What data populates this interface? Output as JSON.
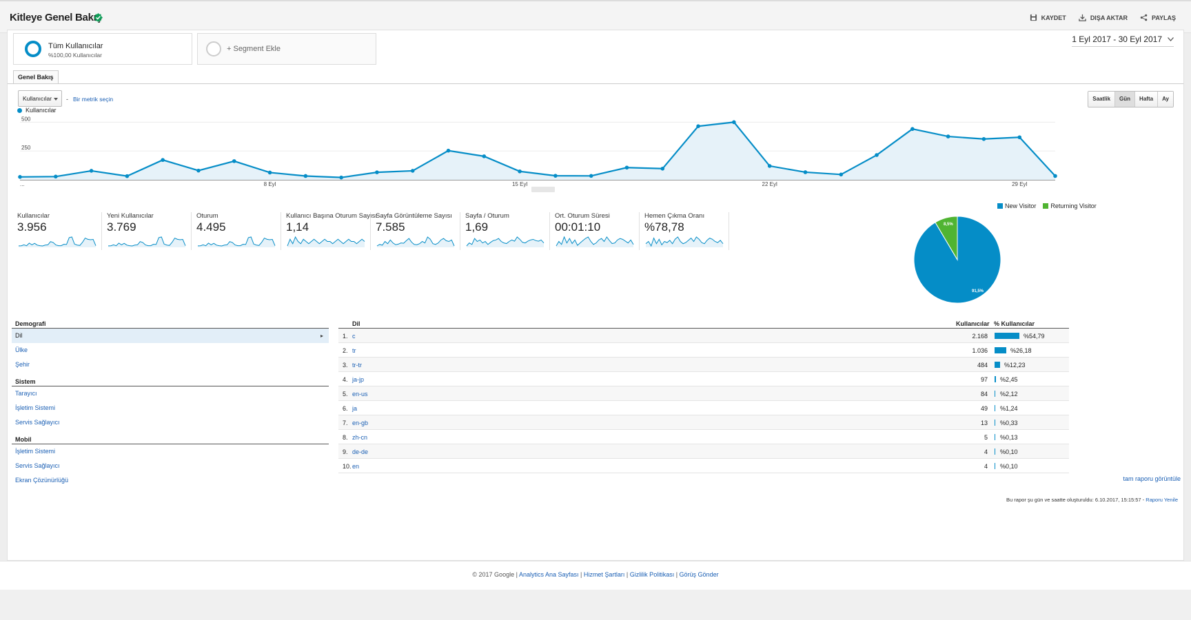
{
  "header": {
    "title": "Kitleye Genel Bakış",
    "actions": [
      "KAYDET",
      "DIŞA AKTAR",
      "PAYLAŞ"
    ]
  },
  "segments": {
    "all_title": "Tüm Kullanıcılar",
    "all_sub": "%100,00 Kullanıcılar",
    "add_label": "+ Segment Ekle"
  },
  "date_range": "1 Eyl 2017 - 30 Eyl 2017",
  "tab": "Genel Bakış",
  "metric_select": "Kullanıcılar",
  "metric_sep": "-",
  "metric_link": "Bir metrik seçin",
  "granularity": [
    "Saatlik",
    "Gün",
    "Hafta",
    "Ay"
  ],
  "granularity_active": "Gün",
  "chart_data": {
    "type": "area",
    "series": [
      {
        "name": "Kullanıcılar",
        "values": [
          25,
          28,
          78,
          32,
          172,
          80,
          162,
          63,
          33,
          20,
          65,
          78,
          253,
          204,
          73,
          35,
          34,
          106,
          97,
          465,
          500,
          120,
          66,
          46,
          215,
          441,
          376,
          354,
          369,
          33
        ]
      }
    ],
    "x": [
      1,
      2,
      3,
      4,
      5,
      6,
      7,
      8,
      9,
      10,
      11,
      12,
      13,
      14,
      15,
      16,
      17,
      18,
      19,
      20,
      21,
      22,
      23,
      24,
      25,
      26,
      27,
      28,
      29,
      30
    ],
    "xtick_labels": [
      "...",
      "8 Eyl",
      "15 Eyl",
      "22 Eyl",
      "29 Eyl"
    ],
    "ytick_labels": [
      "500",
      "250"
    ],
    "ylim": [
      0,
      520
    ],
    "color": "#058dc7"
  },
  "tiles": [
    {
      "label": "Kullanıcılar",
      "value": "3.956"
    },
    {
      "label": "Yeni Kullanıcılar",
      "value": "3.769"
    },
    {
      "label": "Oturum",
      "value": "4.495"
    },
    {
      "label": "Kullanıcı Başına Oturum Sayısı",
      "value": "1,14"
    },
    {
      "label": "Sayfa Görüntüleme Sayısı",
      "value": "7.585"
    },
    {
      "label": "Sayfa / Oturum",
      "value": "1,69"
    },
    {
      "label": "Ort. Oturum Süresi",
      "value": "00:01:10"
    },
    {
      "label": "Hemen Çıkma Oranı",
      "value": "%78,78"
    }
  ],
  "pie": {
    "legend": [
      {
        "name": "New Visitor",
        "color": "#058dc7"
      },
      {
        "name": "Returning Visitor",
        "color": "#50b432"
      }
    ],
    "new_pct": "91,5%",
    "ret_pct": "8,5%",
    "new_frac": 0.915
  },
  "nav": {
    "demografi": "Demografi",
    "dil": "Dil",
    "ulke": "Ülke",
    "sehir": "Şehir",
    "sistem": "Sistem",
    "tarayici": "Tarayıcı",
    "isletim": "İşletim Sistemi",
    "servis": "Servis Sağlayıcı",
    "mobil": "Mobil",
    "mobil_isletim": "İşletim Sistemi",
    "mobil_servis": "Servis Sağlayıcı",
    "ekran": "Ekran Çözünürlüğü"
  },
  "table": {
    "col_lang": "Dil",
    "col_users": "Kullanıcılar",
    "col_pct": "% Kullanıcılar",
    "rows": [
      {
        "n": "1.",
        "lang": "c",
        "users": "2.168",
        "pct": "%54,79",
        "frac": 0.5479
      },
      {
        "n": "2.",
        "lang": "tr",
        "users": "1.036",
        "pct": "%26,18",
        "frac": 0.2618
      },
      {
        "n": "3.",
        "lang": "tr-tr",
        "users": "484",
        "pct": "%12,23",
        "frac": 0.1223
      },
      {
        "n": "4.",
        "lang": "ja-jp",
        "users": "97",
        "pct": "%2,45",
        "frac": 0.0245
      },
      {
        "n": "5.",
        "lang": "en-us",
        "users": "84",
        "pct": "%2,12",
        "frac": 0.0212
      },
      {
        "n": "6.",
        "lang": "ja",
        "users": "49",
        "pct": "%1,24",
        "frac": 0.0124
      },
      {
        "n": "7.",
        "lang": "en-gb",
        "users": "13",
        "pct": "%0,33",
        "frac": 0.0033
      },
      {
        "n": "8.",
        "lang": "zh-cn",
        "users": "5",
        "pct": "%0,13",
        "frac": 0.0013
      },
      {
        "n": "9.",
        "lang": "de-de",
        "users": "4",
        "pct": "%0,10",
        "frac": 0.001
      },
      {
        "n": "10.",
        "lang": "en",
        "users": "4",
        "pct": "%0,10",
        "frac": 0.001
      }
    ],
    "full_report": "tam raporu görüntüle"
  },
  "generated": {
    "text": "Bu rapor şu gün ve saatte oluşturuldu: 6.10.2017, 15:15:57 - ",
    "link": "Raporu Yenile"
  },
  "footer": {
    "copyright": "© 2017 Google | ",
    "links": [
      "Analytics Ana Sayfası",
      "Hizmet Şartları",
      "Gizlilik Politikası",
      "Görüş Gönder"
    ]
  }
}
